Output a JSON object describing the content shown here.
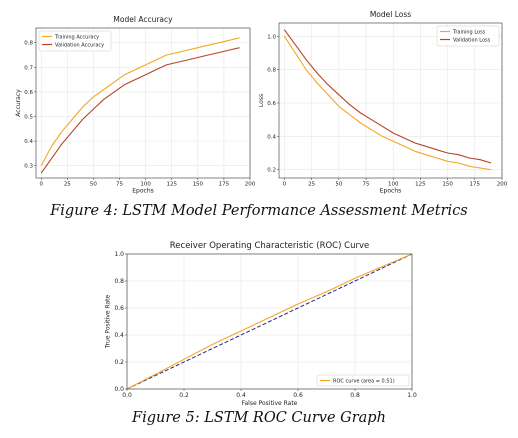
{
  "captions": {
    "figure4": "Figure 4: LSTM Model Performance Assessment Metrics",
    "figure5": "Figure 5: LSTM ROC Curve Graph"
  },
  "chart_data": [
    {
      "id": "accuracy",
      "type": "line",
      "title": "Model Accuracy",
      "xlabel": "Epochs",
      "ylabel": "Accuracy",
      "xlim": [
        -5,
        200
      ],
      "ylim": [
        0.25,
        0.86
      ],
      "xticks": [
        0,
        25,
        50,
        75,
        100,
        125,
        150,
        175,
        200
      ],
      "yticks": [
        0.3,
        0.4,
        0.5,
        0.6,
        0.7,
        0.8
      ],
      "ytick_labels": [
        "0.3",
        "0.4",
        "0.5",
        "0.6",
        "0.7",
        "0.8"
      ],
      "grid": true,
      "legend": "top-left",
      "x": [
        0,
        10,
        20,
        30,
        40,
        50,
        60,
        70,
        80,
        90,
        100,
        110,
        120,
        130,
        140,
        150,
        160,
        170,
        180,
        190
      ],
      "series": [
        {
          "name": "Training Accuracy",
          "color": "#f5a623",
          "values": [
            0.3,
            0.38,
            0.44,
            0.49,
            0.54,
            0.58,
            0.61,
            0.64,
            0.67,
            0.69,
            0.71,
            0.73,
            0.75,
            0.76,
            0.77,
            0.78,
            0.79,
            0.8,
            0.81,
            0.82
          ]
        },
        {
          "name": "Validation Accuracy",
          "color": "#b5442a",
          "values": [
            0.27,
            0.33,
            0.39,
            0.44,
            0.49,
            0.53,
            0.57,
            0.6,
            0.63,
            0.65,
            0.67,
            0.69,
            0.71,
            0.72,
            0.73,
            0.74,
            0.75,
            0.76,
            0.77,
            0.78
          ]
        }
      ]
    },
    {
      "id": "loss",
      "type": "line",
      "title": "Model Loss",
      "xlabel": "Epochs",
      "ylabel": "Loss",
      "xlim": [
        -5,
        200
      ],
      "ylim": [
        0.15,
        1.08
      ],
      "xticks": [
        0,
        25,
        50,
        75,
        100,
        125,
        150,
        175,
        200
      ],
      "yticks": [
        0.2,
        0.4,
        0.6,
        0.8,
        1.0
      ],
      "ytick_labels": [
        "0.2",
        "0.4",
        "0.6",
        "0.8",
        "1.0"
      ],
      "grid": true,
      "legend": "top-right",
      "x": [
        0,
        10,
        20,
        30,
        40,
        50,
        60,
        70,
        80,
        90,
        100,
        110,
        120,
        130,
        140,
        150,
        160,
        170,
        180,
        190
      ],
      "series": [
        {
          "name": "Training Loss",
          "color": "#f5a623",
          "values": [
            1.0,
            0.9,
            0.8,
            0.72,
            0.65,
            0.58,
            0.53,
            0.48,
            0.44,
            0.4,
            0.37,
            0.34,
            0.31,
            0.29,
            0.27,
            0.25,
            0.24,
            0.22,
            0.21,
            0.2
          ]
        },
        {
          "name": "Validation Loss",
          "color": "#b5442a",
          "values": [
            1.04,
            0.95,
            0.86,
            0.78,
            0.71,
            0.65,
            0.59,
            0.54,
            0.5,
            0.46,
            0.42,
            0.39,
            0.36,
            0.34,
            0.32,
            0.3,
            0.29,
            0.27,
            0.26,
            0.24
          ]
        }
      ]
    },
    {
      "id": "roc",
      "type": "line",
      "title": "Receiver Operating Characteristic (ROC) Curve",
      "xlabel": "False Positive Rate",
      "ylabel": "True Positive Rate",
      "xlim": [
        0,
        1
      ],
      "ylim": [
        0,
        1
      ],
      "xticks": [
        0,
        0.2,
        0.4,
        0.6,
        0.8,
        1.0
      ],
      "xtick_labels": [
        "0.0",
        "0.2",
        "0.4",
        "0.6",
        "0.8",
        "1.0"
      ],
      "yticks": [
        0,
        0.2,
        0.4,
        0.6,
        0.8,
        1.0
      ],
      "ytick_labels": [
        "0.0",
        "0.2",
        "0.4",
        "0.6",
        "0.8",
        "1.0"
      ],
      "grid": true,
      "legend": "bottom-right",
      "series": [
        {
          "name": "ROC curve (area = 0.51)",
          "color": "#f5a623",
          "x": [
            0,
            0.1,
            0.2,
            0.3,
            0.4,
            0.5,
            0.6,
            0.7,
            0.8,
            0.9,
            1.0
          ],
          "values": [
            0,
            0.11,
            0.22,
            0.33,
            0.43,
            0.53,
            0.63,
            0.72,
            0.82,
            0.91,
            1.0
          ]
        }
      ],
      "reference_line": {
        "color": "#1f2a8c",
        "x": [
          0,
          1
        ],
        "values": [
          0,
          1
        ]
      }
    }
  ]
}
